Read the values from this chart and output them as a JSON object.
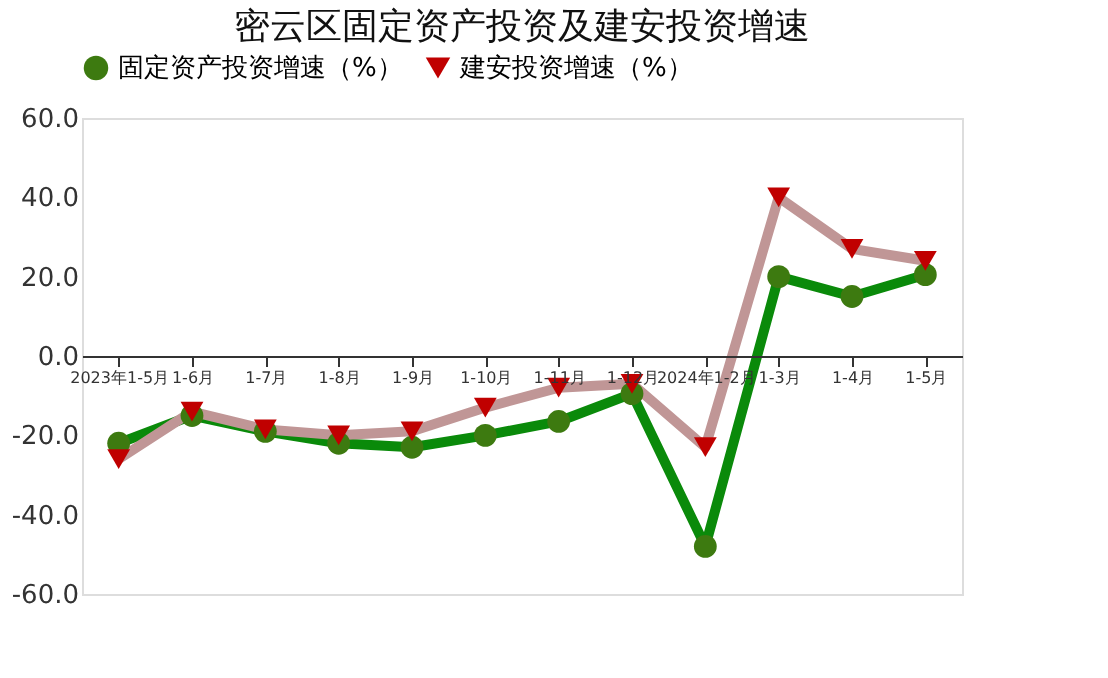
{
  "chart_data": {
    "type": "line",
    "title": "密云区固定资产投资及建安投资增速",
    "categories": [
      "2023年1-5月",
      "1-6月",
      "1-7月",
      "1-8月",
      "1-9月",
      "1-10月",
      "1-11月",
      "1-12月",
      "2024年1-2月",
      "1-3月",
      "1-4月",
      "1-5月"
    ],
    "series": [
      {
        "name": "固定资产投资增速（%）",
        "color": "#0a8a0a",
        "marker": "circle",
        "values": [
          -22,
          -15,
          -19,
          -22,
          -23,
          -20,
          -16.5,
          -9.5,
          -48,
          20,
          15,
          20.5
        ]
      },
      {
        "name": "建安投资增速（%）",
        "color": "#c09696",
        "marker": "triangle",
        "values": [
          -26,
          -14,
          -18.5,
          -20,
          -19,
          -13,
          -8,
          -7,
          -23,
          40,
          27,
          24
        ]
      }
    ],
    "ylim": [
      -60,
      60
    ],
    "yticks": [
      {
        "value": -60,
        "label": "-60.0"
      },
      {
        "value": -40,
        "label": "-40.0"
      },
      {
        "value": -20,
        "label": "-20.0"
      },
      {
        "value": 0,
        "label": "0.0"
      },
      {
        "value": 20,
        "label": "20.0"
      },
      {
        "value": 40,
        "label": "40.0"
      },
      {
        "value": 60,
        "label": "60.0"
      }
    ],
    "grid": false,
    "legend": "top"
  }
}
